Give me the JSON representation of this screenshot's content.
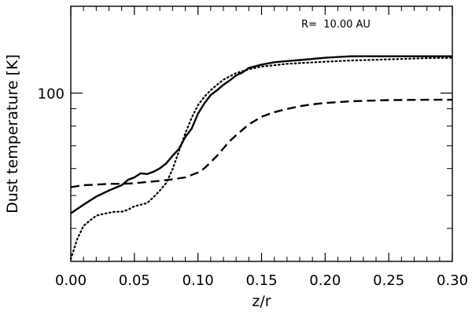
{
  "chart_data": {
    "type": "line",
    "title": "",
    "xlabel": "z/r",
    "ylabel": "Dust temperature [K]",
    "annotation": "R=  10.00 AU",
    "xlim": [
      0.0,
      0.3
    ],
    "ylim": [
      32,
      180
    ],
    "yscale": "log",
    "grid": false,
    "legend": "none",
    "x_ticks": [
      {
        "value": 0.0,
        "label": "0.00"
      },
      {
        "value": 0.05,
        "label": "0.05"
      },
      {
        "value": 0.1,
        "label": "0.10"
      },
      {
        "value": 0.15,
        "label": "0.15"
      },
      {
        "value": 0.2,
        "label": "0.20"
      },
      {
        "value": 0.25,
        "label": "0.25"
      },
      {
        "value": 0.3,
        "label": "0.30"
      }
    ],
    "y_ticks": [
      {
        "value": 100,
        "label": "100"
      }
    ],
    "series": [
      {
        "style": "solid",
        "color": "#000000",
        "points": [
          [
            0.0,
            44.3
          ],
          [
            0.01,
            47.0
          ],
          [
            0.02,
            49.6
          ],
          [
            0.03,
            51.7
          ],
          [
            0.04,
            53.6
          ],
          [
            0.045,
            55.6
          ],
          [
            0.05,
            56.5
          ],
          [
            0.055,
            58.1
          ],
          [
            0.06,
            57.8
          ],
          [
            0.065,
            58.7
          ],
          [
            0.07,
            60.1
          ],
          [
            0.075,
            62.1
          ],
          [
            0.08,
            65.4
          ],
          [
            0.085,
            68.5
          ],
          [
            0.09,
            74.2
          ],
          [
            0.095,
            78.6
          ],
          [
            0.1,
            87.0
          ],
          [
            0.105,
            93.3
          ],
          [
            0.11,
            98.7
          ],
          [
            0.115,
            102.0
          ],
          [
            0.12,
            105.8
          ],
          [
            0.125,
            109.0
          ],
          [
            0.13,
            112.7
          ],
          [
            0.135,
            115.0
          ],
          [
            0.14,
            118.6
          ],
          [
            0.15,
            121.3
          ],
          [
            0.16,
            123.2
          ],
          [
            0.17,
            124.2
          ],
          [
            0.18,
            125.1
          ],
          [
            0.19,
            126.0
          ],
          [
            0.2,
            127.0
          ],
          [
            0.22,
            128.3
          ],
          [
            0.24,
            128.3
          ],
          [
            0.26,
            128.3
          ],
          [
            0.28,
            128.3
          ],
          [
            0.3,
            128.3
          ]
        ]
      },
      {
        "style": "dotted",
        "color": "#000000",
        "points": [
          [
            0.0,
            32.5
          ],
          [
            0.005,
            37.2
          ],
          [
            0.01,
            40.7
          ],
          [
            0.015,
            42.2
          ],
          [
            0.02,
            43.6
          ],
          [
            0.025,
            44.1
          ],
          [
            0.03,
            44.5
          ],
          [
            0.035,
            44.8
          ],
          [
            0.04,
            44.8
          ],
          [
            0.045,
            45.4
          ],
          [
            0.05,
            46.5
          ],
          [
            0.055,
            47.0
          ],
          [
            0.06,
            47.5
          ],
          [
            0.065,
            49.4
          ],
          [
            0.07,
            51.7
          ],
          [
            0.075,
            54.4
          ],
          [
            0.08,
            59.7
          ],
          [
            0.085,
            67.4
          ],
          [
            0.09,
            76.0
          ],
          [
            0.095,
            84.6
          ],
          [
            0.1,
            92.2
          ],
          [
            0.105,
            97.6
          ],
          [
            0.11,
            102.0
          ],
          [
            0.115,
            105.8
          ],
          [
            0.12,
            109.5
          ],
          [
            0.13,
            114.5
          ],
          [
            0.14,
            117.5
          ],
          [
            0.15,
            119.7
          ],
          [
            0.17,
            121.9
          ],
          [
            0.2,
            123.7
          ],
          [
            0.22,
            124.7
          ],
          [
            0.25,
            125.7
          ],
          [
            0.28,
            126.7
          ],
          [
            0.3,
            127.0
          ]
        ]
      },
      {
        "style": "dashed",
        "color": "#000000",
        "points": [
          [
            0.0,
            52.9
          ],
          [
            0.01,
            53.6
          ],
          [
            0.02,
            53.8
          ],
          [
            0.03,
            54.1
          ],
          [
            0.04,
            54.1
          ],
          [
            0.05,
            54.3
          ],
          [
            0.06,
            54.8
          ],
          [
            0.07,
            55.2
          ],
          [
            0.08,
            55.8
          ],
          [
            0.09,
            56.5
          ],
          [
            0.1,
            58.4
          ],
          [
            0.105,
            60.1
          ],
          [
            0.11,
            62.6
          ],
          [
            0.115,
            65.4
          ],
          [
            0.12,
            68.8
          ],
          [
            0.125,
            72.3
          ],
          [
            0.13,
            75.2
          ],
          [
            0.14,
            80.9
          ],
          [
            0.15,
            85.2
          ],
          [
            0.16,
            87.9
          ],
          [
            0.17,
            89.8
          ],
          [
            0.18,
            91.5
          ],
          [
            0.19,
            92.7
          ],
          [
            0.2,
            93.5
          ],
          [
            0.22,
            94.6
          ],
          [
            0.25,
            95.4
          ],
          [
            0.28,
            95.6
          ],
          [
            0.3,
            95.6
          ]
        ]
      }
    ]
  }
}
